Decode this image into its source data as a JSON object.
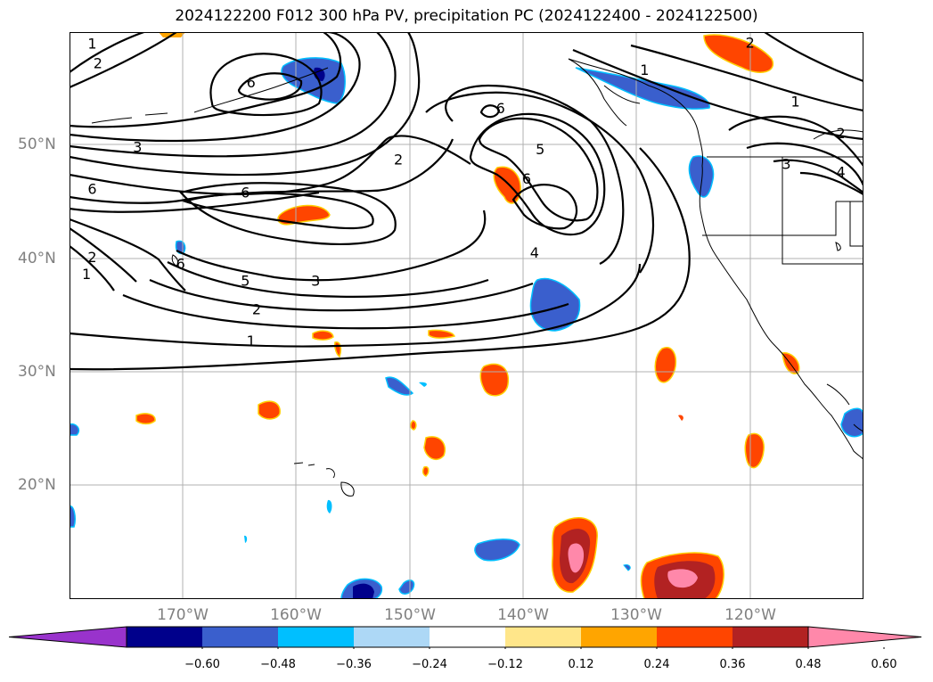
{
  "title": "2024122200 F012 300 hPa PV, precipitation PC (2024122400 - 2024122500)",
  "lat_labels": [
    {
      "text": "50°N",
      "lat": 50
    },
    {
      "text": "40°N",
      "lat": 40
    },
    {
      "text": "30°N",
      "lat": 30
    },
    {
      "text": "20°N",
      "lat": 20
    }
  ],
  "lon_labels": [
    {
      "text": "170°W",
      "lon": -170
    },
    {
      "text": "160°W",
      "lon": -160
    },
    {
      "text": "150°W",
      "lon": -150
    },
    {
      "text": "140°W",
      "lon": -140
    },
    {
      "text": "130°W",
      "lon": -130
    },
    {
      "text": "120°W",
      "lon": -120
    }
  ],
  "map_extent": {
    "lon_min": -180,
    "lon_max": -110,
    "lat_min": 10,
    "lat_max": 60
  },
  "contour_labels": [
    {
      "text": "1",
      "lon": -178,
      "lat": 59
    },
    {
      "text": "2",
      "lon": -177.5,
      "lat": 57.3
    },
    {
      "text": "3",
      "lon": -174,
      "lat": 49.9
    },
    {
      "text": "6",
      "lon": -178,
      "lat": 46.2
    },
    {
      "text": "6",
      "lon": -164.5,
      "lat": 45.9
    },
    {
      "text": "6",
      "lon": -164,
      "lat": 55.6
    },
    {
      "text": "2",
      "lon": -151,
      "lat": 48.8
    },
    {
      "text": "6",
      "lon": -142,
      "lat": 53.3
    },
    {
      "text": "5",
      "lon": -138.5,
      "lat": 49.7
    },
    {
      "text": "6",
      "lon": -139.7,
      "lat": 47.1
    },
    {
      "text": "4",
      "lon": -139,
      "lat": 40.6
    },
    {
      "text": "5",
      "lon": -164.5,
      "lat": 38.1
    },
    {
      "text": "3",
      "lon": -158.3,
      "lat": 38.1
    },
    {
      "text": "2",
      "lon": -163.5,
      "lat": 35.6
    },
    {
      "text": "1",
      "lon": -164,
      "lat": 32.8
    },
    {
      "text": "2",
      "lon": -178,
      "lat": 40.2
    },
    {
      "text": "1",
      "lon": -178.5,
      "lat": 38.7
    },
    {
      "text": "6",
      "lon": -170.2,
      "lat": 39.6
    },
    {
      "text": "1",
      "lon": -129.3,
      "lat": 56.7
    },
    {
      "text": "1",
      "lon": -116,
      "lat": 53.9
    },
    {
      "text": "2",
      "lon": -120,
      "lat": 59.1
    },
    {
      "text": "2",
      "lon": -112,
      "lat": 51.1
    },
    {
      "text": "3",
      "lon": -116.8,
      "lat": 48.4
    },
    {
      "text": "4",
      "lon": -112,
      "lat": 47.7
    }
  ],
  "colorbar": {
    "ticks": [
      "−0.60",
      "−0.48",
      "−0.36",
      "−0.24",
      "−0.12",
      "0.12",
      "0.24",
      "0.36",
      "0.48",
      "0.60"
    ],
    "colors": [
      "#9933cc",
      "#00008b",
      "#3a5fcd",
      "#00bfff",
      "#add8f6",
      "#ffffff",
      "#ffe68a",
      "#ffa500",
      "#ff4500",
      "#b22222",
      "#ff88aa"
    ]
  }
}
